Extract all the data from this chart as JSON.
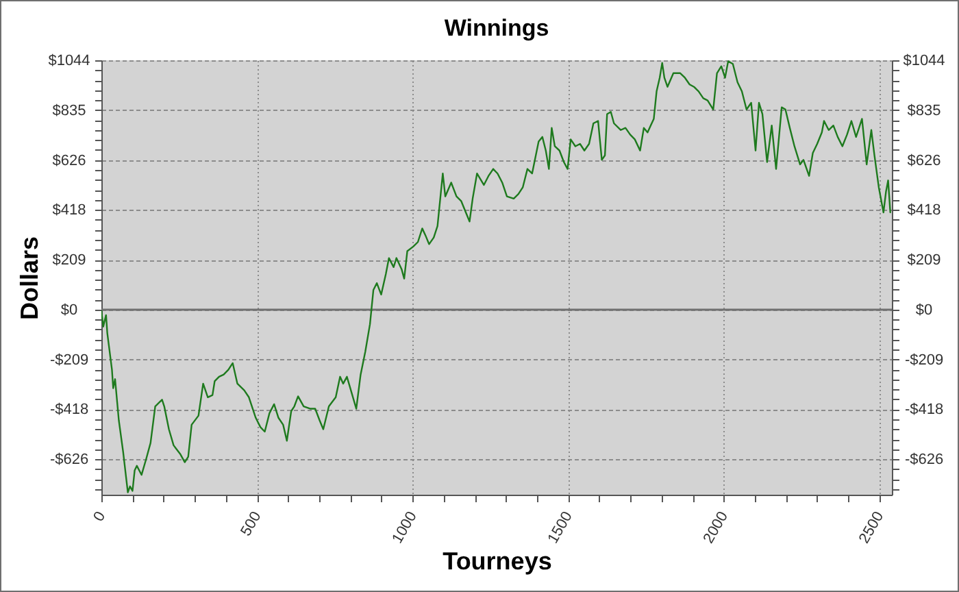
{
  "chart_data": {
    "type": "line",
    "title": "Winnings",
    "xlabel": "Tourneys",
    "ylabel": "Dollars",
    "x": [
      0,
      6,
      15,
      19,
      34,
      38,
      44,
      56,
      70,
      85,
      92,
      100,
      107,
      114,
      129,
      144,
      158,
      173,
      188,
      195,
      202,
      217,
      232,
      254,
      268,
      279,
      290,
      312,
      327,
      342,
      357,
      364,
      378,
      393,
      408,
      422,
      437,
      459,
      474,
      496,
      511,
      525,
      540,
      555,
      569,
      584,
      596,
      610,
      620,
      632,
      650,
      672,
      687,
      701,
      713,
      731,
      753,
      767,
      777,
      789,
      804,
      819,
      833,
      848,
      863,
      874,
      885,
      899,
      914,
      924,
      939,
      948,
      965,
      973,
      983,
      1002,
      1017,
      1031,
      1041,
      1053,
      1068,
      1080,
      1097,
      1105,
      1124,
      1141,
      1156,
      1171,
      1183,
      1193,
      1207,
      1229,
      1244,
      1259,
      1273,
      1288,
      1303,
      1325,
      1340,
      1354,
      1369,
      1384,
      1405,
      1417,
      1428,
      1438,
      1447,
      1457,
      1472,
      1486,
      1498,
      1508,
      1523,
      1538,
      1552,
      1567,
      1581,
      1596,
      1608,
      1618,
      1625,
      1637,
      1647,
      1669,
      1684,
      1699,
      1714,
      1731,
      1743,
      1755,
      1765,
      1775,
      1784,
      1794,
      1802,
      1809,
      1819,
      1838,
      1860,
      1875,
      1890,
      1904,
      1919,
      1934,
      1948,
      1966,
      1978,
      1992,
      2004,
      2014,
      2029,
      2044,
      2058,
      2073,
      2088,
      2102,
      2113,
      2124,
      2139,
      2154,
      2168,
      2186,
      2198,
      2212,
      2227,
      2245,
      2256,
      2274,
      2286,
      2300,
      2315,
      2322,
      2337,
      2352,
      2366,
      2381,
      2396,
      2410,
      2425,
      2444,
      2459,
      2474,
      2484,
      2498,
      2513,
      2521,
      2528,
      2535
    ],
    "series": [
      {
        "color": "#1e7a1e",
        "values": [
          -5,
          -71,
          -23,
          -98,
          -252,
          -329,
          -291,
          -463,
          -597,
          -765,
          -740,
          -759,
          -673,
          -654,
          -692,
          -625,
          -558,
          -405,
          -386,
          -377,
          -405,
          -501,
          -568,
          -606,
          -639,
          -616,
          -482,
          -444,
          -310,
          -367,
          -358,
          -300,
          -281,
          -272,
          -252,
          -224,
          -310,
          -338,
          -367,
          -453,
          -492,
          -511,
          -434,
          -396,
          -453,
          -482,
          -549,
          -425,
          -405,
          -363,
          -405,
          -415,
          -415,
          -463,
          -501,
          -405,
          -367,
          -281,
          -310,
          -281,
          -348,
          -415,
          -272,
          -176,
          -61,
          82,
          111,
          63,
          149,
          216,
          178,
          216,
          168,
          130,
          245,
          264,
          283,
          340,
          312,
          274,
          302,
          350,
          570,
          474,
          532,
          474,
          455,
          407,
          369,
          465,
          570,
          522,
          560,
          589,
          570,
          532,
          474,
          465,
          484,
          512,
          589,
          570,
          704,
          723,
          666,
          589,
          761,
          684,
          666,
          618,
          589,
          713,
          684,
          694,
          666,
          694,
          780,
          790,
          627,
          646,
          819,
          828,
          780,
          752,
          761,
          733,
          713,
          666,
          761,
          742,
          771,
          799,
          914,
          971,
          1033,
          971,
          933,
          990,
          990,
          971,
          943,
          933,
          914,
          885,
          876,
          838,
          990,
          1019,
          971,
          1040,
          1029,
          952,
          914,
          838,
          866,
          666,
          866,
          819,
          618,
          771,
          589,
          847,
          838,
          761,
          684,
          608,
          627,
          560,
          656,
          694,
          742,
          790,
          752,
          771,
          723,
          684,
          733,
          790,
          723,
          799,
          608,
          752,
          646,
          512,
          407,
          493,
          541,
          407
        ]
      }
    ],
    "xlim": [
      0,
      2540
    ],
    "ylim": [
      -775,
      1044
    ],
    "y2lim": [
      -775,
      1044
    ],
    "xticks": [
      0,
      {
        "value": 100,
        "label": null
      },
      {
        "value": 200,
        "label": null
      },
      {
        "value": 300,
        "label": null
      },
      {
        "value": 400,
        "label": null
      },
      500,
      {
        "value": 600,
        "label": null
      },
      {
        "value": 700,
        "label": null
      },
      {
        "value": 800,
        "label": null
      },
      {
        "value": 900,
        "label": null
      },
      1000,
      {
        "value": 1100,
        "label": null
      },
      {
        "value": 1200,
        "label": null
      },
      {
        "value": 1300,
        "label": null
      },
      {
        "value": 1400,
        "label": null
      },
      1500,
      {
        "value": 1600,
        "label": null
      },
      {
        "value": 1700,
        "label": null
      },
      {
        "value": 1800,
        "label": null
      },
      {
        "value": 1900,
        "label": null
      },
      2000,
      {
        "value": 2100,
        "label": null
      },
      {
        "value": 2200,
        "label": null
      },
      {
        "value": 2300,
        "label": null
      },
      {
        "value": 2400,
        "label": null
      },
      2500
    ],
    "yticks": [
      {
        "value": -751.68,
        "label": null
      },
      {
        "value": -709.92,
        "label": null
      },
      {
        "value": -668.16,
        "label": null
      },
      {
        "value": -626.4,
        "label": "-$626"
      },
      {
        "value": -584.64,
        "label": null
      },
      {
        "value": -542.88,
        "label": null
      },
      {
        "value": -501.12,
        "label": null
      },
      {
        "value": -459.36,
        "label": null
      },
      {
        "value": -417.6,
        "label": "-$418"
      },
      {
        "value": -375.84,
        "label": null
      },
      {
        "value": -334.08,
        "label": null
      },
      {
        "value": -292.32,
        "label": null
      },
      {
        "value": -250.56,
        "label": null
      },
      {
        "value": -208.8,
        "label": "-$209"
      },
      {
        "value": -167.04,
        "label": null
      },
      {
        "value": -125.28,
        "label": null
      },
      {
        "value": -83.52,
        "label": null
      },
      {
        "value": -41.76,
        "label": null
      },
      {
        "value": 0,
        "label": "$0"
      },
      {
        "value": 41.76,
        "label": null
      },
      {
        "value": 83.52,
        "label": null
      },
      {
        "value": 125.28,
        "label": null
      },
      {
        "value": 167.04,
        "label": null
      },
      {
        "value": 208.8,
        "label": "$209"
      },
      {
        "value": 250.56,
        "label": null
      },
      {
        "value": 292.32,
        "label": null
      },
      {
        "value": 334.08,
        "label": null
      },
      {
        "value": 375.84,
        "label": null
      },
      {
        "value": 417.6,
        "label": "$418"
      },
      {
        "value": 459.36,
        "label": null
      },
      {
        "value": 501.12,
        "label": null
      },
      {
        "value": 542.88,
        "label": null
      },
      {
        "value": 584.64,
        "label": null
      },
      {
        "value": 626.4,
        "label": "$626"
      },
      {
        "value": 668.16,
        "label": null
      },
      {
        "value": 709.92,
        "label": null
      },
      {
        "value": 751.68,
        "label": null
      },
      {
        "value": 793.44,
        "label": null
      },
      {
        "value": 835.2,
        "label": "$835"
      },
      {
        "value": 876.96,
        "label": null
      },
      {
        "value": 918.72,
        "label": null
      },
      {
        "value": 960.48,
        "label": null
      },
      {
        "value": 1002.24,
        "label": null
      },
      {
        "value": 1044,
        "label": "$1044"
      }
    ],
    "y2ticks": [
      {
        "value": -751.68,
        "label": null
      },
      {
        "value": -709.92,
        "label": null
      },
      {
        "value": -668.16,
        "label": null
      },
      {
        "value": -626.4,
        "label": "-$626"
      },
      {
        "value": -584.64,
        "label": null
      },
      {
        "value": -542.88,
        "label": null
      },
      {
        "value": -501.12,
        "label": null
      },
      {
        "value": -459.36,
        "label": null
      },
      {
        "value": -417.6,
        "label": "-$418"
      },
      {
        "value": -375.84,
        "label": null
      },
      {
        "value": -334.08,
        "label": null
      },
      {
        "value": -292.32,
        "label": null
      },
      {
        "value": -250.56,
        "label": null
      },
      {
        "value": -208.8,
        "label": "-$209"
      },
      {
        "value": -167.04,
        "label": null
      },
      {
        "value": -125.28,
        "label": null
      },
      {
        "value": -83.52,
        "label": null
      },
      {
        "value": -41.76,
        "label": null
      },
      {
        "value": 0,
        "label": "$0"
      },
      {
        "value": 41.76,
        "label": null
      },
      {
        "value": 83.52,
        "label": null
      },
      {
        "value": 125.28,
        "label": null
      },
      {
        "value": 167.04,
        "label": null
      },
      {
        "value": 208.8,
        "label": "$209"
      },
      {
        "value": 250.56,
        "label": null
      },
      {
        "value": 292.32,
        "label": null
      },
      {
        "value": 334.08,
        "label": null
      },
      {
        "value": 375.84,
        "label": null
      },
      {
        "value": 417.6,
        "label": "$418"
      },
      {
        "value": 459.36,
        "label": null
      },
      {
        "value": 501.12,
        "label": null
      },
      {
        "value": 542.88,
        "label": null
      },
      {
        "value": 584.64,
        "label": null
      },
      {
        "value": 626.4,
        "label": "$626"
      },
      {
        "value": 668.16,
        "label": null
      },
      {
        "value": 709.92,
        "label": null
      },
      {
        "value": 751.68,
        "label": null
      },
      {
        "value": 793.44,
        "label": null
      },
      {
        "value": 835.2,
        "label": "$835"
      },
      {
        "value": 876.96,
        "label": null
      },
      {
        "value": 918.72,
        "label": null
      },
      {
        "value": 960.48,
        "label": null
      },
      {
        "value": 1002.24,
        "label": null
      },
      {
        "value": 1044,
        "label": "$1044"
      }
    ],
    "grid": true,
    "ref_lines": [
      {
        "axis": "y",
        "value": 0,
        "color": "#707070"
      }
    ]
  }
}
